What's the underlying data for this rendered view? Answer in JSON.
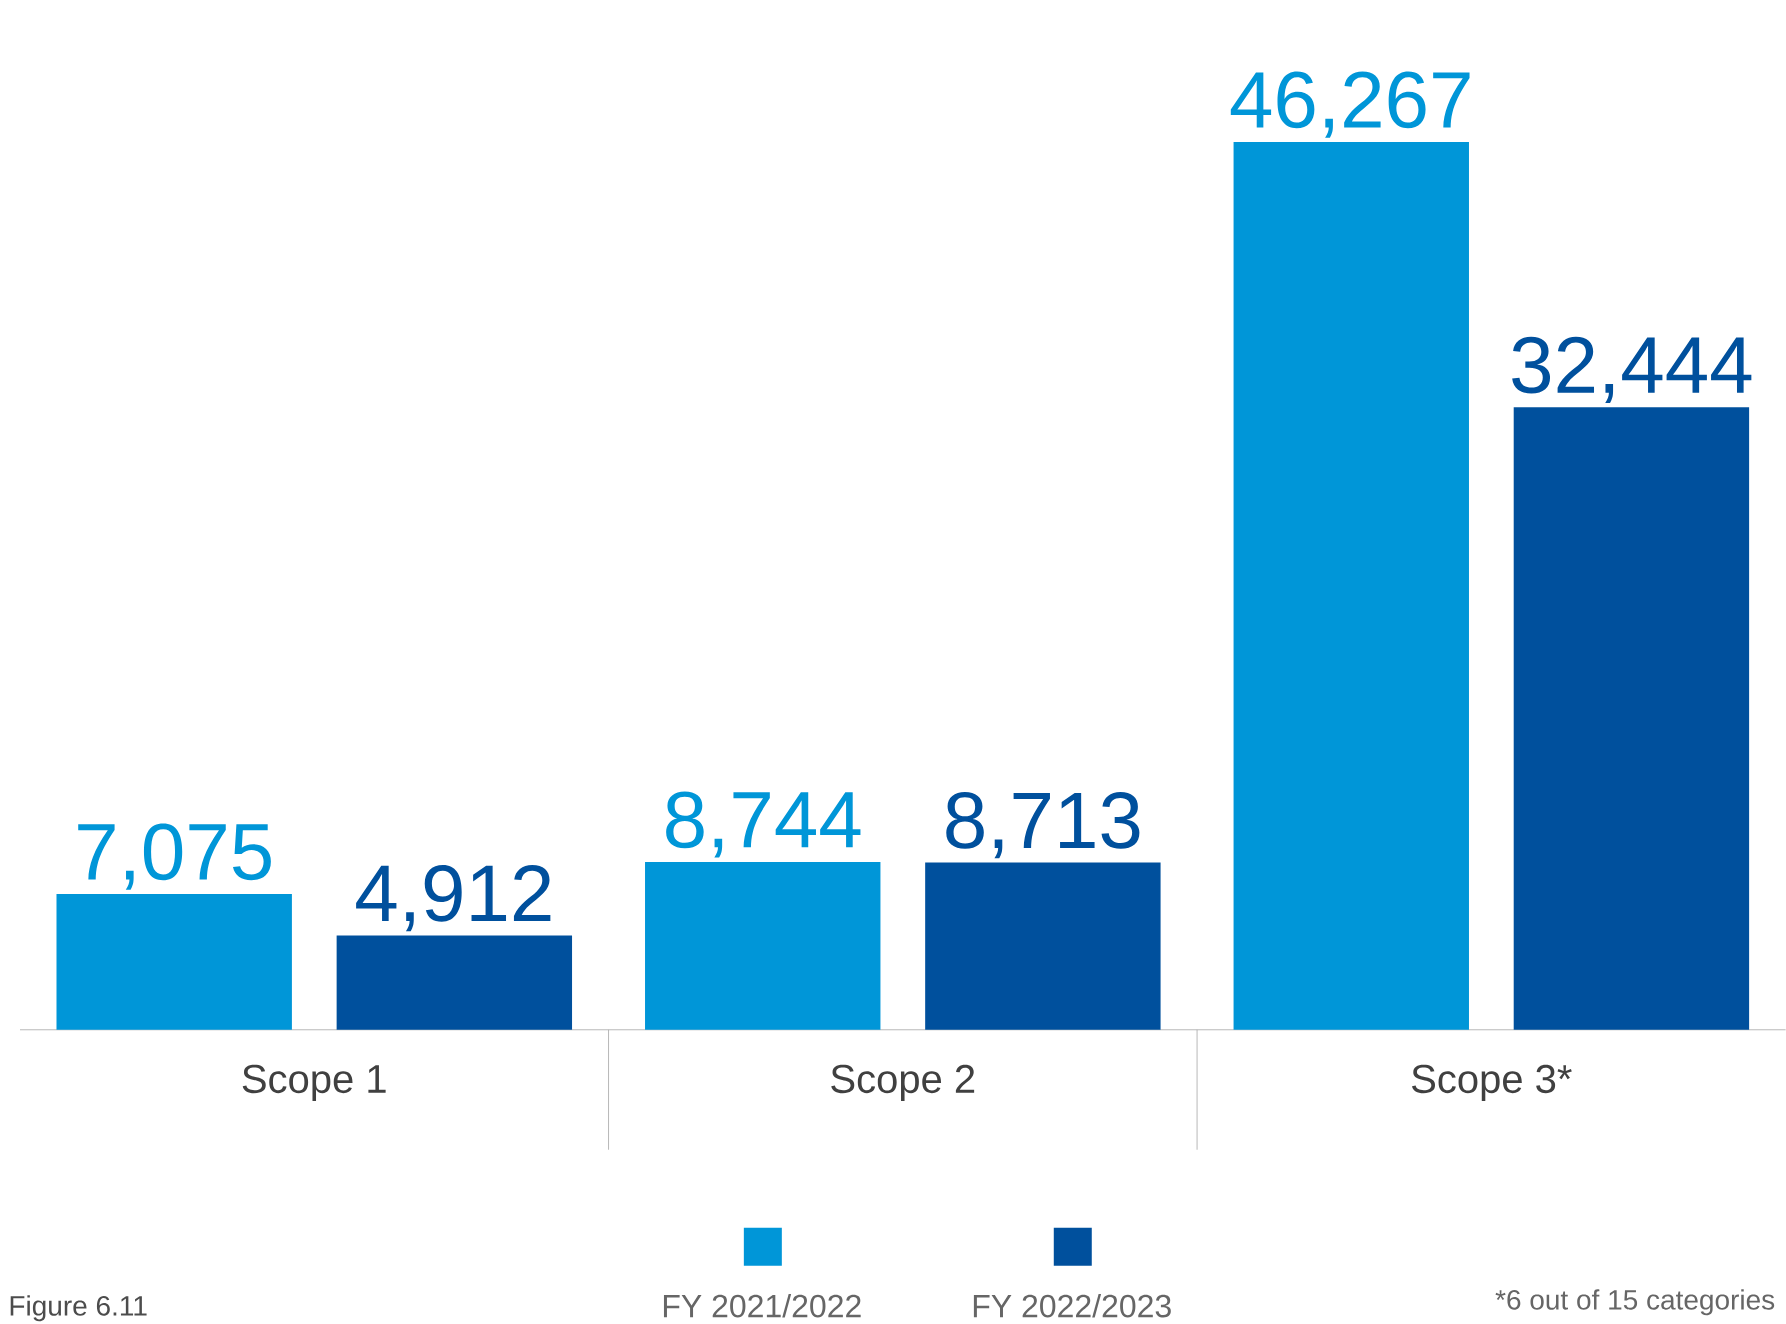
{
  "chart_data": {
    "type": "bar",
    "categories": [
      "Scope 1",
      "Scope 2",
      "Scope 3*"
    ],
    "series": [
      {
        "name": "FY 2021/2022",
        "color": "#0096d8",
        "values": [
          7075,
          8744,
          46267
        ],
        "value_labels": [
          "7,075",
          "8,744",
          "46,267"
        ]
      },
      {
        "name": "FY 2022/2023",
        "color": "#00509d",
        "values": [
          4912,
          8713,
          32444
        ],
        "value_labels": [
          "4,912",
          "8,713",
          "32,444"
        ]
      }
    ],
    "legend": "bottom",
    "annotations": [
      "Figure 6.11",
      "*6 out of 15 categories"
    ]
  }
}
